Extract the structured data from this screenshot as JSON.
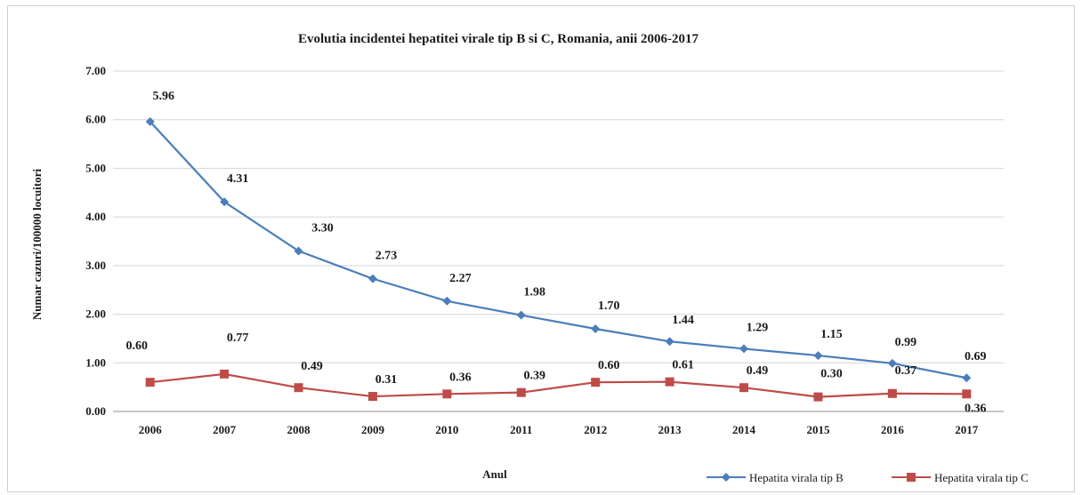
{
  "chart_data": {
    "type": "line",
    "title": "Evolutia incidentei hepatitei virale tip B si C, Romania, anii 2006-2017",
    "xlabel": "Anul",
    "ylabel": "Numar cazuri/100000 locuitori",
    "categories": [
      "2006",
      "2007",
      "2008",
      "2009",
      "2010",
      "2011",
      "2012",
      "2013",
      "2014",
      "2015",
      "2016",
      "2017"
    ],
    "ylim": [
      0,
      7
    ],
    "yticks": [
      "0.00",
      "1.00",
      "2.00",
      "3.00",
      "4.00",
      "5.00",
      "6.00",
      "7.00"
    ],
    "grid": true,
    "legend_position": "bottom-right",
    "series": [
      {
        "name": "Hepatita virala tip B",
        "color": "#4a7ebb",
        "marker": "diamond",
        "values": [
          5.96,
          4.31,
          3.3,
          2.73,
          2.27,
          1.98,
          1.7,
          1.44,
          1.29,
          1.15,
          0.99,
          0.69
        ],
        "labels": [
          "5.96",
          "4.31",
          "3.30",
          "2.73",
          "2.27",
          "1.98",
          "1.70",
          "1.44",
          "1.29",
          "1.15",
          "0.99",
          "0.69"
        ]
      },
      {
        "name": "Hepatita virala tip C",
        "color": "#be4b48",
        "marker": "square",
        "values": [
          0.6,
          0.77,
          0.49,
          0.31,
          0.36,
          0.39,
          0.6,
          0.61,
          0.49,
          0.3,
          0.37,
          0.36
        ],
        "labels": [
          "0.60",
          "0.77",
          "0.49",
          "0.31",
          "0.36",
          "0.39",
          "0.60",
          "0.61",
          "0.49",
          "0.30",
          "0.37",
          "0.36"
        ]
      }
    ]
  }
}
